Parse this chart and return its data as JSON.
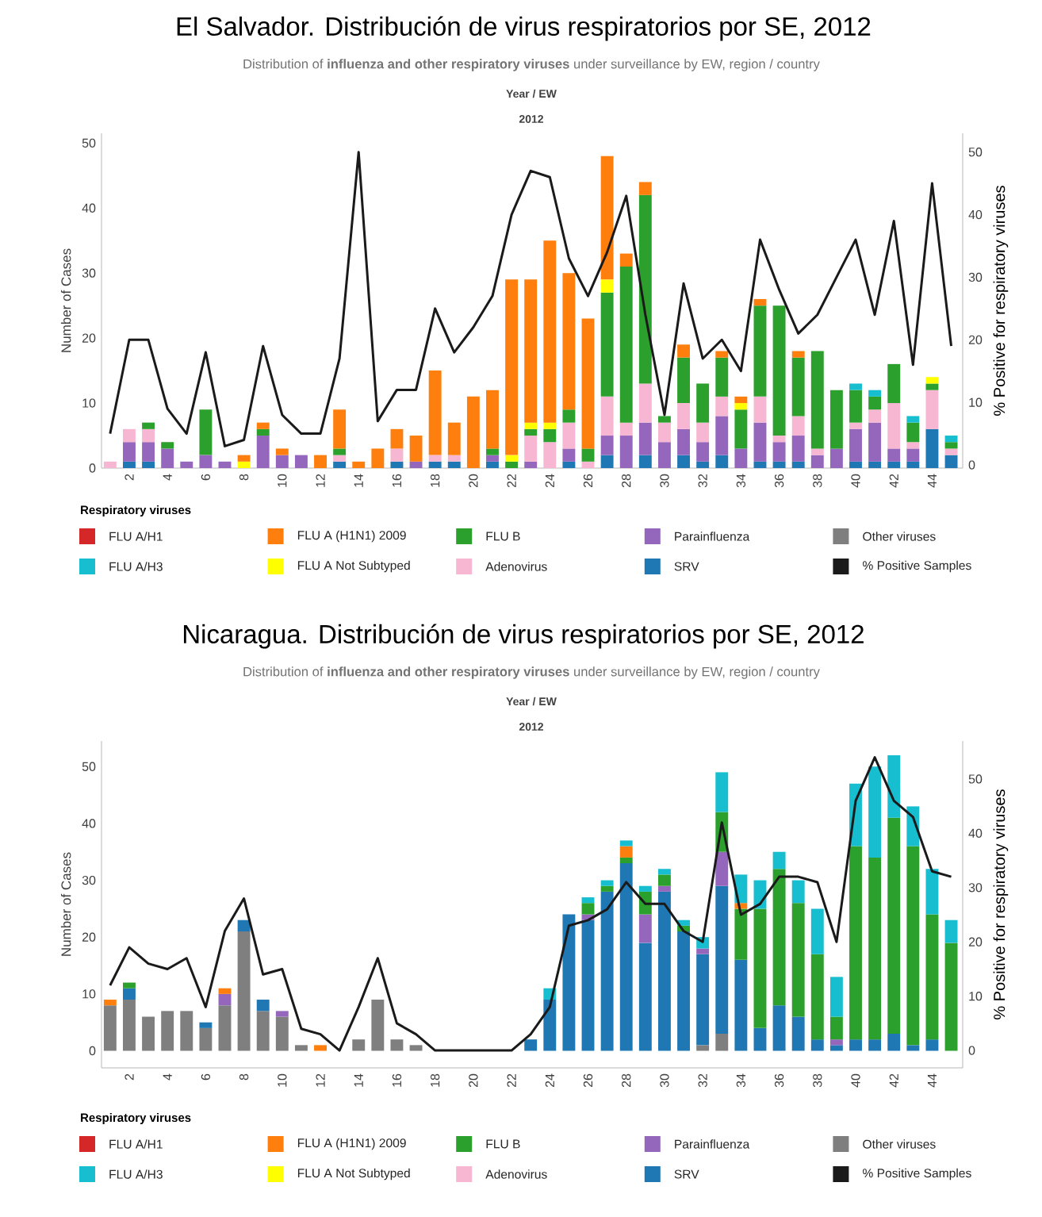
{
  "chart_data": [
    {
      "type": "bar",
      "title": "El Salvador. Distribución de virus respiratorios por SE, 2012",
      "subtitle": "Distribution of **influenza and other respiratory viruses** under surveillance by EW, region / country",
      "annotations": [
        "Year  /  EW",
        "2012"
      ],
      "ylabel": "Number of Cases",
      "y2label": "% Positive for respiratory viruses",
      "legend_title": "Respiratory viruses",
      "legend": "bottom",
      "stacked": true,
      "categories": [
        null,
        "2",
        null,
        "4",
        null,
        "6",
        null,
        "8",
        null,
        "10",
        null,
        "12",
        null,
        "14",
        null,
        "16",
        null,
        "18",
        null,
        "20",
        null,
        "22",
        null,
        "24",
        null,
        "26",
        null,
        "28",
        null,
        "30",
        null,
        "32",
        null,
        "34",
        null,
        "36",
        null,
        "38",
        null,
        "40",
        null,
        "42",
        null,
        "44",
        null
      ],
      "ylim": [
        0,
        51.5
      ],
      "yticks": [
        0,
        10,
        20,
        30,
        40,
        50
      ],
      "y2lim": [
        -0.5,
        53
      ],
      "y2ticks": [
        0,
        10,
        20,
        30,
        40,
        50
      ],
      "series": [
        {
          "name": "Other viruses",
          "color": "#7f7f7f",
          "values": [
            0,
            0,
            0,
            0,
            0,
            0,
            0,
            0,
            0,
            0,
            0,
            0,
            0,
            0,
            0,
            0,
            0,
            0,
            0,
            0,
            0,
            0,
            0,
            0,
            0,
            0,
            0,
            0,
            0,
            0,
            0,
            0,
            0,
            0,
            0,
            0,
            0,
            0,
            0,
            0,
            0,
            0,
            0,
            0,
            0
          ]
        },
        {
          "name": "SRV",
          "color": "#1f77b4",
          "values": [
            0,
            1,
            1,
            0,
            0,
            0,
            0,
            0,
            0,
            0,
            0,
            0,
            1,
            0,
            0,
            1,
            0,
            1,
            1,
            0,
            1,
            0,
            0,
            0,
            1,
            0,
            2,
            0,
            2,
            0,
            2,
            1,
            2,
            0,
            1,
            1,
            1,
            0,
            0,
            1,
            1,
            1,
            1,
            6,
            2
          ]
        },
        {
          "name": "Parainfluenza",
          "color": "#9467bd",
          "values": [
            0,
            3,
            3,
            3,
            1,
            2,
            1,
            0,
            5,
            2,
            2,
            0,
            0,
            0,
            0,
            0,
            1,
            0,
            0,
            0,
            1,
            0,
            1,
            0,
            2,
            0,
            3,
            5,
            5,
            4,
            4,
            3,
            6,
            3,
            6,
            3,
            4,
            2,
            3,
            5,
            6,
            2,
            2,
            0,
            0
          ]
        },
        {
          "name": "Adenovirus",
          "color": "#f7b6d2",
          "values": [
            1,
            2,
            2,
            0,
            0,
            0,
            0,
            0,
            0,
            0,
            0,
            0,
            1,
            0,
            0,
            2,
            0,
            1,
            1,
            0,
            0,
            0,
            4,
            4,
            4,
            1,
            6,
            2,
            6,
            3,
            4,
            3,
            3,
            0,
            4,
            1,
            3,
            1,
            0,
            1,
            2,
            7,
            1,
            6,
            1
          ]
        },
        {
          "name": "FLU B",
          "color": "#2ca02c",
          "values": [
            0,
            0,
            1,
            1,
            0,
            7,
            0,
            0,
            1,
            0,
            0,
            0,
            1,
            0,
            0,
            0,
            0,
            0,
            0,
            0,
            1,
            1,
            1,
            2,
            2,
            2,
            16,
            24,
            29,
            1,
            7,
            6,
            6,
            6,
            14,
            20,
            9,
            15,
            9,
            5,
            2,
            6,
            3,
            1,
            1
          ]
        },
        {
          "name": "FLU A Not Subtyped",
          "color": "#ffff00",
          "values": [
            0,
            0,
            0,
            0,
            0,
            0,
            0,
            1,
            0,
            0,
            0,
            0,
            0,
            0,
            0,
            0,
            0,
            0,
            0,
            0,
            0,
            1,
            1,
            1,
            0,
            0,
            2,
            0,
            0,
            0,
            0,
            0,
            0,
            1,
            0,
            0,
            0,
            0,
            0,
            0,
            0,
            0,
            0,
            1,
            0
          ]
        },
        {
          "name": "FLU A (H1N1) 2009",
          "color": "#ff7f0e",
          "values": [
            0,
            0,
            0,
            0,
            0,
            0,
            0,
            1,
            1,
            1,
            0,
            2,
            6,
            1,
            3,
            3,
            4,
            13,
            5,
            11,
            9,
            27,
            22,
            28,
            21,
            20,
            19,
            2,
            2,
            0,
            2,
            0,
            1,
            1,
            1,
            0,
            1,
            0,
            0,
            0,
            0,
            0,
            0,
            0,
            0
          ]
        },
        {
          "name": "FLU A/H3",
          "color": "#17becf",
          "values": [
            0,
            0,
            0,
            0,
            0,
            0,
            0,
            0,
            0,
            0,
            0,
            0,
            0,
            0,
            0,
            0,
            0,
            0,
            0,
            0,
            0,
            0,
            0,
            0,
            0,
            0,
            0,
            0,
            0,
            0,
            0,
            0,
            0,
            0,
            0,
            0,
            0,
            0,
            0,
            1,
            1,
            0,
            1,
            0,
            1
          ]
        },
        {
          "name": "FLU A/H1",
          "color": "#d62728",
          "values": [
            0,
            0,
            0,
            0,
            0,
            0,
            0,
            0,
            0,
            0,
            0,
            0,
            0,
            0,
            0,
            0,
            0,
            0,
            0,
            0,
            0,
            0,
            0,
            0,
            0,
            0,
            0,
            0,
            0,
            0,
            0,
            0,
            0,
            0,
            0,
            0,
            0,
            0,
            0,
            0,
            0,
            0,
            0,
            0,
            0
          ]
        },
        {
          "name": "% Positive Samples",
          "type": "line",
          "axis": "y2",
          "color": "#1a1a1a",
          "values": [
            5,
            20,
            20,
            9,
            5,
            18,
            3,
            4,
            19,
            8,
            5,
            5,
            17,
            50,
            7,
            12,
            12,
            25,
            18,
            22,
            27,
            40,
            47,
            46,
            33,
            27,
            34,
            43,
            24,
            8,
            29,
            17,
            20,
            15,
            36,
            28,
            21,
            24,
            30,
            36,
            24,
            39,
            16,
            45,
            19
          ]
        }
      ]
    },
    {
      "type": "bar",
      "title": "Nicaragua. Distribución de virus respiratorios por SE, 2012",
      "subtitle": "Distribution of **influenza and other respiratory viruses** under surveillance by EW, region / country",
      "annotations": [
        "Year  /  EW",
        "2012"
      ],
      "ylabel": "Number of Cases",
      "y2label": "% Positive for respiratory viruses",
      "legend_title": "Respiratory viruses",
      "legend": "bottom",
      "stacked": true,
      "categories": [
        null,
        "2",
        null,
        "4",
        null,
        "6",
        null,
        "8",
        null,
        "10",
        null,
        "12",
        null,
        "14",
        null,
        "16",
        null,
        "18",
        null,
        "20",
        null,
        "22",
        null,
        "24",
        null,
        "26",
        null,
        "28",
        null,
        "30",
        null,
        "32",
        null,
        "34",
        null,
        "36",
        null,
        "38",
        null,
        "40",
        null,
        "42",
        null,
        "44",
        null
      ],
      "ylim": [
        -3,
        54.5
      ],
      "yticks": [
        0,
        10,
        20,
        30,
        40,
        50
      ],
      "y2lim": [
        -3.2,
        57
      ],
      "y2ticks": [
        0,
        10,
        20,
        30,
        40,
        50
      ],
      "series": [
        {
          "name": "Other viruses",
          "color": "#7f7f7f",
          "values": [
            8,
            9,
            6,
            7,
            7,
            4,
            8,
            21,
            7,
            6,
            1,
            0,
            0,
            2,
            9,
            2,
            1,
            0,
            0,
            0,
            0,
            0,
            0,
            0,
            0,
            0,
            0,
            0,
            0,
            0,
            0,
            1,
            3,
            0,
            0,
            0,
            0,
            0,
            0,
            0,
            0,
            0,
            0,
            0,
            0
          ]
        },
        {
          "name": "SRV",
          "color": "#1f77b4",
          "values": [
            0,
            2,
            0,
            0,
            0,
            1,
            0,
            2,
            2,
            0,
            0,
            0,
            0,
            0,
            0,
            0,
            0,
            0,
            0,
            0,
            0,
            0,
            2,
            9,
            24,
            23,
            28,
            33,
            19,
            28,
            21,
            16,
            26,
            16,
            4,
            8,
            6,
            2,
            1,
            2,
            2,
            3,
            1,
            2,
            0
          ]
        },
        {
          "name": "Parainfluenza",
          "color": "#9467bd",
          "values": [
            0,
            0,
            0,
            0,
            0,
            0,
            2,
            0,
            0,
            1,
            0,
            0,
            0,
            0,
            0,
            0,
            0,
            0,
            0,
            0,
            0,
            0,
            0,
            0,
            0,
            1,
            0,
            0,
            5,
            1,
            0,
            1,
            6,
            0,
            0,
            0,
            0,
            0,
            1,
            0,
            0,
            0,
            0,
            0,
            0
          ]
        },
        {
          "name": "Adenovirus",
          "color": "#f7b6d2",
          "values": [
            0,
            0,
            0,
            0,
            0,
            0,
            0,
            0,
            0,
            0,
            0,
            0,
            0,
            0,
            0,
            0,
            0,
            0,
            0,
            0,
            0,
            0,
            0,
            0,
            0,
            0,
            0,
            0,
            0,
            0,
            0,
            0,
            0,
            0,
            0,
            0,
            0,
            0,
            0,
            0,
            0,
            0,
            0,
            0,
            0
          ]
        },
        {
          "name": "FLU B",
          "color": "#2ca02c",
          "values": [
            0,
            1,
            0,
            0,
            0,
            0,
            0,
            0,
            0,
            0,
            0,
            0,
            0,
            0,
            0,
            0,
            0,
            0,
            0,
            0,
            0,
            0,
            0,
            0,
            0,
            2,
            1,
            1,
            4,
            2,
            1,
            0,
            7,
            9,
            21,
            24,
            20,
            15,
            4,
            34,
            32,
            38,
            35,
            22,
            19
          ]
        },
        {
          "name": "FLU A Not Subtyped",
          "color": "#ffff00",
          "values": [
            0,
            0,
            0,
            0,
            0,
            0,
            0,
            0,
            0,
            0,
            0,
            0,
            0,
            0,
            0,
            0,
            0,
            0,
            0,
            0,
            0,
            0,
            0,
            0,
            0,
            0,
            0,
            0,
            0,
            0,
            0,
            0,
            0,
            0,
            0,
            0,
            0,
            0,
            0,
            0,
            0,
            0,
            0,
            0,
            0
          ]
        },
        {
          "name": "FLU A (H1N1) 2009",
          "color": "#ff7f0e",
          "values": [
            1,
            0,
            0,
            0,
            0,
            0,
            1,
            0,
            0,
            0,
            0,
            1,
            0,
            0,
            0,
            0,
            0,
            0,
            0,
            0,
            0,
            0,
            0,
            0,
            0,
            0,
            0,
            2,
            0,
            0,
            0,
            0,
            0,
            1,
            0,
            0,
            0,
            0,
            0,
            0,
            0,
            0,
            0,
            0,
            0
          ]
        },
        {
          "name": "FLU A/H3",
          "color": "#17becf",
          "values": [
            0,
            0,
            0,
            0,
            0,
            0,
            0,
            0,
            0,
            0,
            0,
            0,
            0,
            0,
            0,
            0,
            0,
            0,
            0,
            0,
            0,
            0,
            0,
            2,
            0,
            1,
            1,
            1,
            1,
            1,
            1,
            2,
            7,
            5,
            5,
            3,
            4,
            8,
            7,
            11,
            16,
            11,
            7,
            8,
            4
          ]
        },
        {
          "name": "FLU A/H1",
          "color": "#d62728",
          "values": [
            0,
            0,
            0,
            0,
            0,
            0,
            0,
            0,
            0,
            0,
            0,
            0,
            0,
            0,
            0,
            0,
            0,
            0,
            0,
            0,
            0,
            0,
            0,
            0,
            0,
            0,
            0,
            0,
            0,
            0,
            0,
            0,
            0,
            0,
            0,
            0,
            0,
            0,
            0,
            0,
            0,
            0,
            0,
            0,
            0
          ]
        },
        {
          "name": "% Positive Samples",
          "type": "line",
          "axis": "y2",
          "color": "#1a1a1a",
          "values": [
            12,
            19,
            16,
            15,
            17,
            8,
            22,
            28,
            14,
            15,
            4,
            3,
            0,
            8,
            17,
            5,
            3,
            0,
            0,
            0,
            0,
            0,
            3,
            8,
            23,
            24,
            26,
            31,
            27,
            27,
            22,
            20,
            42,
            25,
            27,
            32,
            32,
            31,
            20,
            46,
            54,
            46,
            43,
            33,
            32
          ]
        }
      ]
    }
  ]
}
